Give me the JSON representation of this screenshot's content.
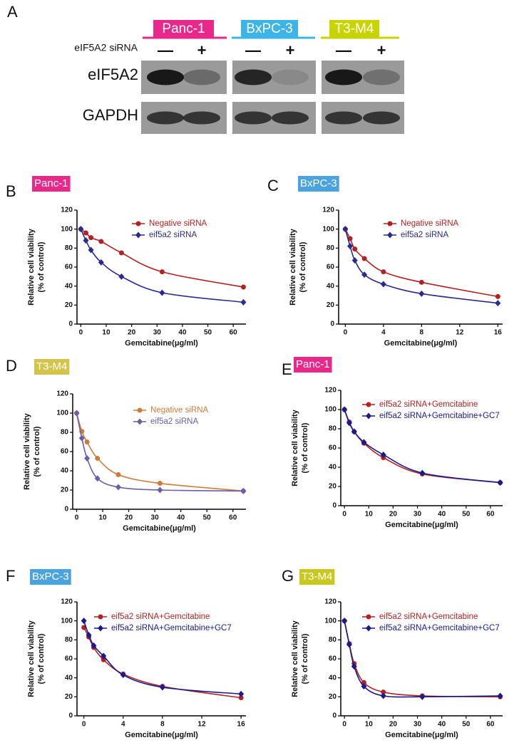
{
  "panel_a": {
    "letter": "A",
    "cell_lines": [
      {
        "name": "Panc-1",
        "color": "#e8288a"
      },
      {
        "name": "BxPC-3",
        "color": "#3cb4e6"
      },
      {
        "name": "T3-M4",
        "color": "#c8d400"
      }
    ],
    "sirna_label": "eIF5A2 siRNA",
    "signs": [
      "—",
      "+"
    ],
    "rows": [
      "eIF5A2",
      "GAPDH"
    ]
  },
  "chart_data": [
    {
      "type": "line",
      "panel": "B",
      "label": "Panc-1",
      "label_color": "#e8288a",
      "xlabel": "Gemcitabine(μg/ml)",
      "ylabel": [
        "Relative cell viability",
        "(% of control)"
      ],
      "x": [
        0,
        2,
        4,
        8,
        16,
        32,
        64
      ],
      "xlim": [
        -1.5,
        65
      ],
      "xticks": [
        0,
        10,
        20,
        30,
        40,
        50,
        60
      ],
      "ylim": [
        0,
        120
      ],
      "yticks": [
        0,
        20,
        40,
        60,
        80,
        100,
        120
      ],
      "series": [
        {
          "name": "Negative siRNA",
          "color": "#b22222",
          "marker": "circle",
          "values": [
            100,
            96,
            91,
            87,
            75,
            55,
            39
          ]
        },
        {
          "name": "eif5a2 siRNA",
          "color": "#2b2b8f",
          "marker": "diamond",
          "values": [
            100,
            88,
            78,
            65,
            50,
            33,
            23
          ]
        }
      ]
    },
    {
      "type": "line",
      "panel": "C",
      "label": "BxPC-3",
      "label_color": "#4aa3df",
      "xlabel": "Gemcitabine(μg/ml)",
      "ylabel": [
        "Relative cell viability",
        "(% of control)"
      ],
      "x": [
        0,
        0.5,
        1,
        2,
        4,
        8,
        16
      ],
      "xlim": [
        -0.7,
        16.5
      ],
      "xticks": [
        0,
        4,
        8,
        12,
        16
      ],
      "ylim": [
        0,
        120
      ],
      "yticks": [
        0,
        20,
        40,
        60,
        80,
        100,
        120
      ],
      "series": [
        {
          "name": "Negative siRNA",
          "color": "#b22222",
          "marker": "circle",
          "values": [
            100,
            90,
            79,
            69,
            55,
            44,
            29
          ]
        },
        {
          "name": "eif5a2 siRNA",
          "color": "#2b2b8f",
          "marker": "diamond",
          "values": [
            100,
            82,
            67,
            52,
            42,
            32,
            22
          ]
        }
      ]
    },
    {
      "type": "line",
      "panel": "D",
      "label": "T3-M4",
      "label_color": "#d4c44a",
      "xlabel": "Gemcitabine(μg/ml)",
      "ylabel": [
        "Relative cell viability",
        "(% of control)"
      ],
      "x": [
        0,
        2,
        4,
        8,
        16,
        32,
        64
      ],
      "xlim": [
        -1.5,
        65
      ],
      "xticks": [
        0,
        10,
        20,
        30,
        40,
        50,
        60
      ],
      "ylim": [
        0,
        120
      ],
      "yticks": [
        0,
        20,
        40,
        60,
        80,
        100,
        120
      ],
      "series": [
        {
          "name": "Negative siRNA",
          "color": "#d07a3a",
          "marker": "circle",
          "values": [
            100,
            81,
            70,
            53,
            36,
            27,
            19
          ]
        },
        {
          "name": "eif5a2 siRNA",
          "color": "#6b5ea8",
          "marker": "diamond",
          "values": [
            100,
            74,
            53,
            32,
            23,
            20,
            19
          ]
        }
      ]
    },
    {
      "type": "line",
      "panel": "E",
      "label": "Panc-1",
      "label_color": "#e8288a",
      "xlabel": "Gemcitabine(μg/ml)",
      "ylabel": [
        "Relative cell viability",
        "(% of control)"
      ],
      "x": [
        0,
        2,
        4,
        8,
        16,
        32,
        64
      ],
      "xlim": [
        -1.5,
        65
      ],
      "xticks": [
        0,
        10,
        20,
        30,
        40,
        50,
        60
      ],
      "ylim": [
        0,
        120
      ],
      "yticks": [
        0,
        20,
        40,
        60,
        80,
        100,
        120
      ],
      "series": [
        {
          "name": "eif5a2 siRNA+Gemcitabine",
          "color": "#b22222",
          "marker": "circle",
          "values": [
            100,
            87,
            77,
            65,
            50,
            33,
            24
          ]
        },
        {
          "name": "eif5a2 siRNA+Gemcitabine+GC7",
          "color": "#1a1a8f",
          "marker": "diamond",
          "values": [
            100,
            86,
            77,
            66,
            53,
            34,
            24
          ]
        }
      ]
    },
    {
      "type": "line",
      "panel": "F",
      "label": "BxPC-3",
      "label_color": "#4aa3df",
      "xlabel": "Gemcitabine(μg/ml)",
      "ylabel": [
        "Relative cell viability",
        "(% of control)"
      ],
      "x": [
        0,
        0.5,
        1,
        2,
        4,
        8,
        16
      ],
      "xlim": [
        -0.7,
        16.5
      ],
      "xticks": [
        0,
        4,
        8,
        12,
        16
      ],
      "ylim": [
        0,
        120
      ],
      "yticks": [
        0,
        20,
        40,
        60,
        80,
        100,
        120
      ],
      "series": [
        {
          "name": "eif5a2 siRNA+Gemcitabine",
          "color": "#b22222",
          "marker": "circle",
          "values": [
            93,
            83,
            72,
            59,
            44,
            31,
            19
          ]
        },
        {
          "name": "eif5a2 siRNA+Gemcitabine+GC7",
          "color": "#1a1a8f",
          "marker": "diamond",
          "values": [
            100,
            85,
            74,
            63,
            43,
            30,
            23
          ]
        }
      ]
    },
    {
      "type": "line",
      "panel": "G",
      "label": "T3-M4",
      "label_color": "#c8c820",
      "xlabel": "Gemcitabine(μg/ml)",
      "ylabel": [
        "Relative cell viability",
        "(% of control)"
      ],
      "x": [
        0,
        2,
        4,
        8,
        16,
        32,
        64
      ],
      "xlim": [
        -1.5,
        65
      ],
      "xticks": [
        0,
        10,
        20,
        30,
        40,
        50,
        60
      ],
      "ylim": [
        0,
        120
      ],
      "yticks": [
        0,
        20,
        40,
        60,
        80,
        100,
        120
      ],
      "series": [
        {
          "name": "eif5a2 siRNA+Gemcitabine",
          "color": "#b22222",
          "marker": "circle",
          "values": [
            100,
            76,
            55,
            35,
            25,
            21,
            20
          ]
        },
        {
          "name": "eif5a2 siRNA+Gemcitabine+GC7",
          "color": "#1a1a8f",
          "marker": "diamond",
          "values": [
            100,
            75,
            52,
            31,
            21,
            20,
            21
          ]
        }
      ]
    }
  ]
}
